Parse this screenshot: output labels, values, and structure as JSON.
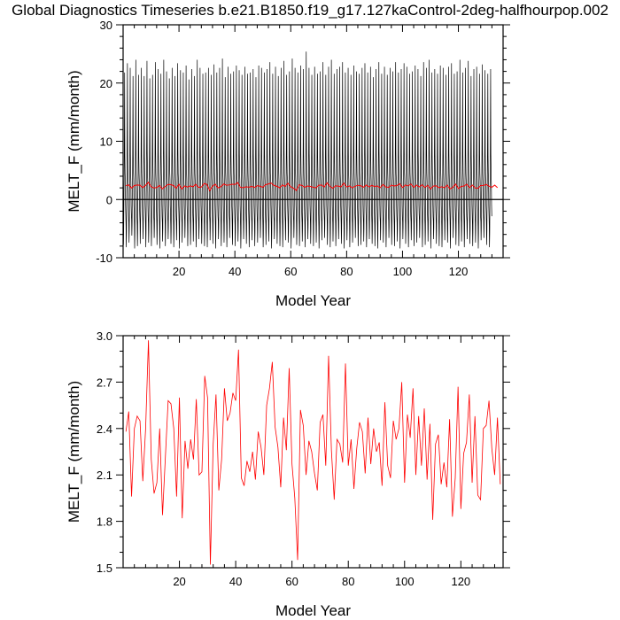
{
  "page": {
    "title": "Global Diagnostics Timeseries b.e21.B1850.f19_g17.127kaControl-2deg-halfhourpop.002"
  },
  "chart_data": [
    {
      "type": "line",
      "xlabel": "Model Year",
      "ylabel": "MELT_F (mm/month)",
      "xlim": [
        0,
        136
      ],
      "ylim": [
        -10,
        30
      ],
      "xticks": [
        20,
        40,
        60,
        80,
        100,
        120
      ],
      "yticks": [
        -10,
        0,
        10,
        20,
        30
      ],
      "zero_line": true,
      "series": [
        {
          "color": "#000000",
          "style": "monthly",
          "summer_peaks": [
            21.8,
            23.4,
            22.6,
            21.2,
            24.0,
            21.4,
            22.6,
            21.2,
            23.8,
            20.8,
            21.4,
            23.6,
            22.4,
            21.6,
            24.0,
            22.0,
            20.8,
            22.6,
            21.2,
            23.4,
            22.2,
            21.8,
            23.0,
            20.6,
            22.4,
            21.2,
            24.0,
            22.6,
            21.6,
            21.8,
            22.6,
            21.4,
            23.2,
            21.8,
            22.6,
            24.2,
            21.0,
            22.8,
            21.6,
            22.0,
            23.0,
            22.2,
            21.4,
            22.8,
            21.6,
            21.8,
            22.4,
            21.0,
            23.0,
            22.6,
            21.8,
            22.4,
            23.6,
            21.6,
            22.8,
            21.2,
            22.6,
            23.8,
            21.4,
            22.0,
            24.2,
            22.6,
            21.8,
            23.0,
            22.4,
            25.4,
            22.6,
            21.4,
            22.8,
            21.6,
            22.0,
            23.6,
            21.4,
            22.8,
            24.0,
            21.6,
            22.4,
            22.8,
            23.6,
            21.8,
            22.6,
            21.4,
            23.0,
            22.0,
            21.6,
            22.6,
            23.4,
            21.8,
            22.8,
            21.0,
            22.4,
            23.6,
            21.6,
            22.8,
            21.4,
            22.6,
            22.0,
            23.6,
            21.8,
            22.4,
            23.4,
            22.8,
            21.6,
            22.0,
            23.0,
            22.4,
            21.2,
            23.6,
            22.6,
            24.0,
            21.8,
            22.4,
            21.6,
            23.0,
            22.6,
            21.4,
            22.8,
            23.4,
            21.6,
            22.0,
            24.0,
            21.8,
            22.6,
            23.8,
            21.2,
            22.4,
            22.8,
            21.6,
            23.2,
            22.2,
            21.6,
            22.4
          ],
          "winter_troughs": [
            -7.8,
            -8.2,
            -7.4,
            -6.2,
            -8.4,
            -8.0,
            -7.6,
            -6.8,
            -8.2,
            -7.4,
            -8.0,
            -6.6,
            -7.8,
            -8.4,
            -7.2,
            -8.0,
            -6.8,
            -7.6,
            -8.2,
            -7.0,
            -8.4,
            -7.4,
            -6.6,
            -8.0,
            -7.8,
            -7.2,
            -8.2,
            -6.8,
            -7.6,
            -8.0,
            -8.2,
            -7.0,
            -7.6,
            -8.4,
            -6.8,
            -8.0,
            -7.4,
            -8.2,
            -6.6,
            -7.8,
            -8.0,
            -7.2,
            -8.4,
            -6.8,
            -7.6,
            -8.2,
            -7.0,
            -8.0,
            -7.4,
            -6.6,
            -8.2,
            -7.8,
            -7.2,
            -8.4,
            -6.8,
            -7.6,
            -8.0,
            -8.2,
            -7.0,
            -7.4,
            -8.4,
            -6.6,
            -7.8,
            -8.0,
            -7.2,
            -8.2,
            -6.8,
            -7.6,
            -8.0,
            -7.4,
            -8.4,
            -7.0,
            -6.6,
            -7.8,
            -8.2,
            -7.2,
            -8.0,
            -6.8,
            -7.6,
            -8.4,
            -7.0,
            -8.2,
            -7.4,
            -6.6,
            -8.0,
            -7.8,
            -7.2,
            -8.2,
            -6.8,
            -7.6,
            -8.0,
            -8.4,
            -7.0,
            -7.4,
            -8.2,
            -6.6,
            -7.8,
            -8.0,
            -7.2,
            -8.4,
            -6.8,
            -7.6,
            -8.2,
            -7.0,
            -8.0,
            -7.4,
            -6.6,
            -8.2,
            -7.8,
            -7.2,
            -8.4,
            -6.8,
            -7.6,
            -8.0,
            -8.2,
            -7.0,
            -7.4,
            -8.4,
            -6.6,
            -7.8,
            -8.0,
            -7.2,
            -8.2,
            -6.8,
            -7.6,
            -8.0,
            -7.4,
            -8.4,
            -7.0,
            -6.6,
            -7.8,
            -8.2,
            -7.2,
            -8.0,
            -6.8
          ]
        },
        {
          "color": "#ff0000",
          "style": "annual-mean",
          "values": "see panel 2"
        }
      ]
    },
    {
      "type": "line",
      "xlabel": "Model Year",
      "ylabel": "MELT_F (mm/month)",
      "xlim": [
        0,
        135
      ],
      "ylim": [
        1.5,
        3.0
      ],
      "xticks": [
        20,
        40,
        60,
        80,
        100,
        120
      ],
      "yticks": [
        1.5,
        1.8,
        2.1,
        2.4,
        2.7,
        3.0
      ],
      "series": [
        {
          "color": "#ff0000",
          "x_start": 1,
          "values": [
            2.38,
            2.51,
            1.96,
            2.4,
            2.48,
            2.45,
            2.06,
            2.4,
            2.97,
            2.2,
            1.98,
            2.05,
            2.4,
            1.84,
            2.21,
            2.58,
            2.56,
            2.4,
            1.96,
            2.6,
            1.82,
            2.32,
            2.14,
            2.33,
            2.2,
            2.59,
            2.1,
            2.12,
            2.74,
            2.6,
            1.52,
            2.3,
            2.62,
            2.0,
            2.2,
            2.66,
            2.45,
            2.5,
            2.63,
            2.58,
            2.91,
            2.08,
            2.03,
            2.19,
            2.12,
            2.25,
            2.07,
            2.38,
            2.28,
            2.1,
            2.55,
            2.66,
            2.83,
            2.41,
            2.28,
            2.02,
            2.47,
            2.26,
            2.79,
            2.17,
            1.95,
            1.55,
            2.52,
            2.42,
            2.1,
            2.32,
            2.25,
            2.11,
            2.0,
            2.44,
            2.49,
            2.16,
            2.87,
            2.26,
            1.94,
            2.33,
            2.3,
            2.18,
            2.82,
            2.16,
            2.33,
            2.01,
            2.27,
            2.44,
            2.38,
            2.11,
            2.47,
            2.17,
            2.4,
            2.25,
            2.31,
            2.03,
            2.57,
            2.16,
            2.08,
            2.45,
            2.33,
            2.4,
            2.7,
            2.05,
            2.49,
            2.34,
            2.66,
            2.1,
            2.48,
            2.16,
            2.53,
            2.07,
            2.43,
            1.81,
            2.3,
            2.36,
            2.04,
            2.18,
            2.02,
            2.46,
            1.83,
            2.08,
            2.67,
            1.88,
            2.24,
            2.31,
            2.62,
            2.05,
            2.48,
            1.97,
            1.94,
            2.4,
            2.42,
            2.58,
            2.27,
            2.1,
            2.47,
            2.04
          ]
        }
      ]
    }
  ]
}
